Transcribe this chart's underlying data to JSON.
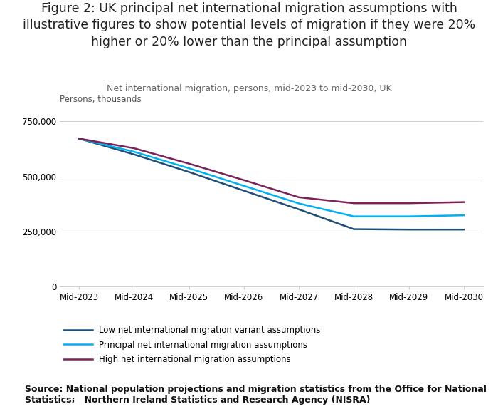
{
  "title_line1": "Figure 2: UK principal net international migration assumptions with",
  "title_line2": "illustrative figures to show potential levels of migration if they were 20%",
  "title_line3": "higher or 20% lower than the principal assumption",
  "subtitle": "Net international migration, persons, mid-2023 to mid-2030, UK",
  "ylabel_text": "Persons, thousands",
  "source_text": "Source: National population projections and migration statistics from the Office for National\nStatistics;   Northern Ireland Statistics and Research Agency (NISRA)",
  "x_labels": [
    "Mid-2023",
    "Mid-2024",
    "Mid-2025",
    "Mid-2026",
    "Mid-2027",
    "Mid-2028",
    "Mid-2029",
    "Mid-2030"
  ],
  "x_values": [
    2023,
    2024,
    2025,
    2026,
    2027,
    2028,
    2029,
    2030
  ],
  "low_values": [
    672000,
    600000,
    520000,
    435000,
    350000,
    260000,
    258000,
    258000
  ],
  "principal_values": [
    672000,
    612000,
    537000,
    457000,
    377000,
    318000,
    318000,
    323000
  ],
  "high_values": [
    672000,
    628000,
    558000,
    483000,
    405000,
    378000,
    378000,
    383000
  ],
  "low_color": "#1f4e79",
  "principal_color": "#00b0f0",
  "high_color": "#7b2257",
  "ylim": [
    0,
    800000
  ],
  "yticks": [
    0,
    250000,
    500000,
    750000
  ],
  "legend_labels": [
    "Low net international migration variant assumptions",
    "Principal net international migration assumptions",
    "High net international migration assumptions"
  ],
  "bg_color": "#ffffff",
  "grid_color": "#d0d0d0",
  "title_fontsize": 12.5,
  "subtitle_fontsize": 9,
  "axis_fontsize": 8.5,
  "legend_fontsize": 8.5,
  "source_fontsize": 9
}
